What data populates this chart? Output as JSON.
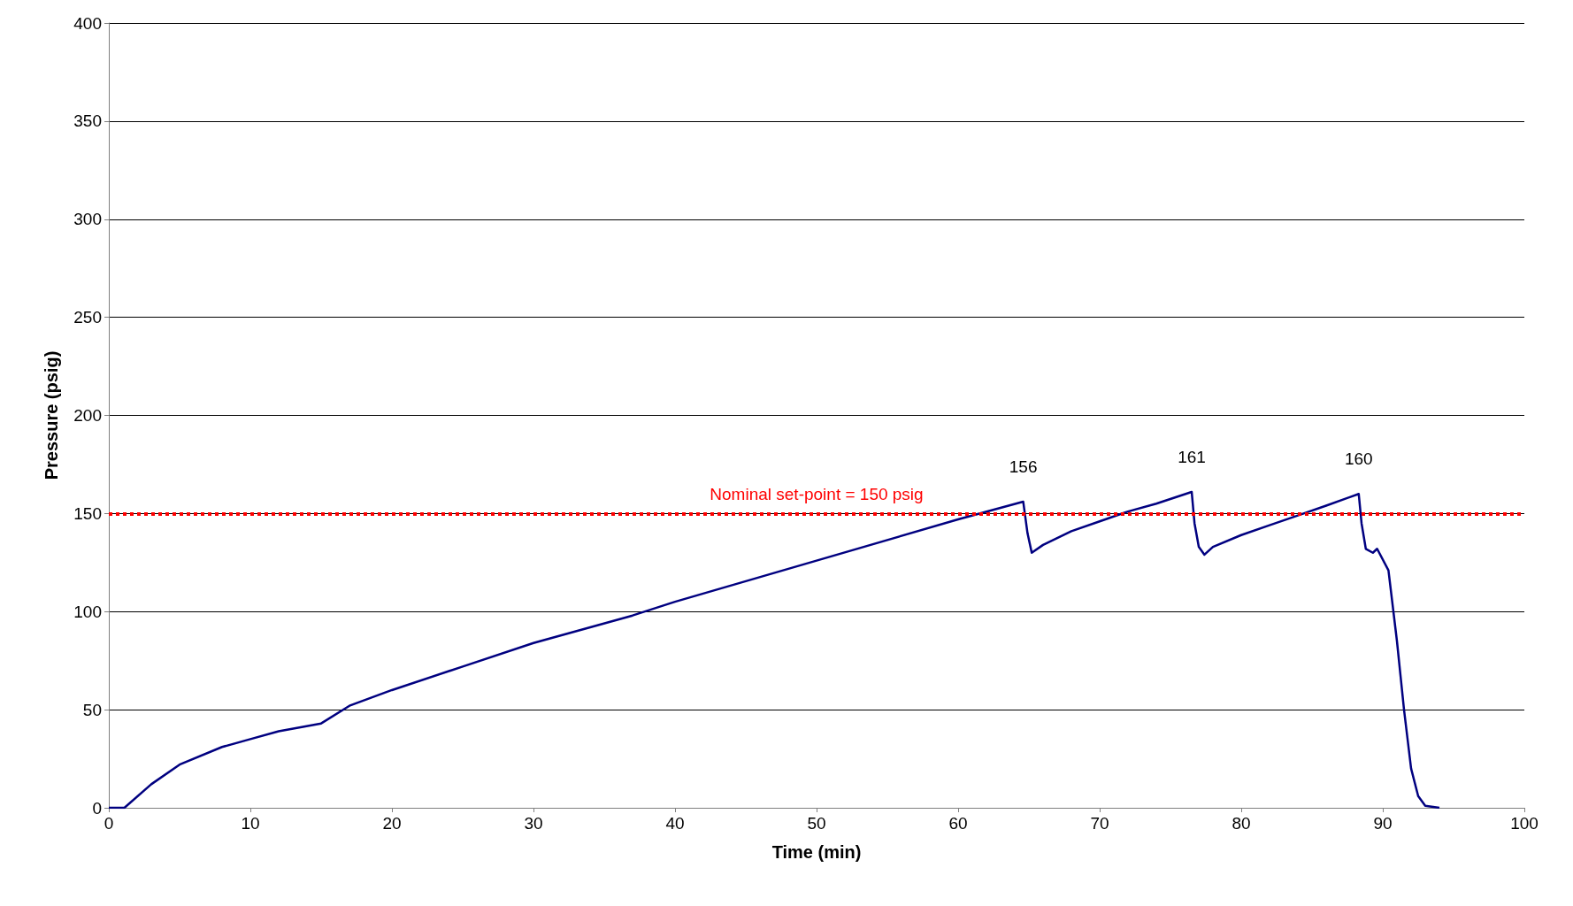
{
  "chart_data": {
    "type": "line",
    "xlabel": "Time (min)",
    "ylabel": "Pressure (psig)",
    "x": [
      0,
      1.1,
      3,
      5,
      8,
      10,
      12,
      15,
      17,
      20,
      25,
      30,
      37,
      40,
      50,
      60,
      64.6,
      64.9,
      65.2,
      66,
      68,
      70,
      72,
      74,
      76.5,
      76.7,
      77,
      77.4,
      78,
      80,
      82,
      84,
      86,
      88.3,
      88.5,
      88.8,
      89.3,
      89.6,
      90.4,
      91,
      91.5,
      92,
      92.5,
      93,
      94
    ],
    "series": [
      {
        "color": "#000080",
        "values": [
          0,
          0,
          12,
          22,
          31,
          35,
          39,
          43,
          52,
          60,
          72,
          84,
          98,
          105,
          126,
          147,
          156,
          140,
          130,
          134,
          141,
          146,
          151,
          155,
          161,
          145,
          133,
          129,
          133,
          139,
          144,
          149,
          154,
          160,
          145,
          132,
          130,
          132,
          121,
          85,
          50,
          20,
          6,
          1,
          0
        ]
      }
    ],
    "xlim": [
      0,
      100
    ],
    "xticks": [
      0,
      10,
      20,
      30,
      40,
      50,
      60,
      70,
      80,
      90,
      100
    ],
    "ylim": [
      0,
      400
    ],
    "yticks": [
      0,
      50,
      100,
      150,
      200,
      250,
      300,
      350,
      400
    ],
    "grid": "y",
    "marker": "none",
    "line_style": "solid",
    "ref_lines": [
      {
        "axis": "y",
        "value": 150,
        "label": "Nominal set-point = 150 psig",
        "color": "#ff0000",
        "line_style": "dotted"
      }
    ],
    "annotations": [
      {
        "text": "156",
        "x": 64.6,
        "y": 156
      },
      {
        "text": "161",
        "x": 76.5,
        "y": 161
      },
      {
        "text": "160",
        "x": 88.3,
        "y": 160
      }
    ]
  }
}
